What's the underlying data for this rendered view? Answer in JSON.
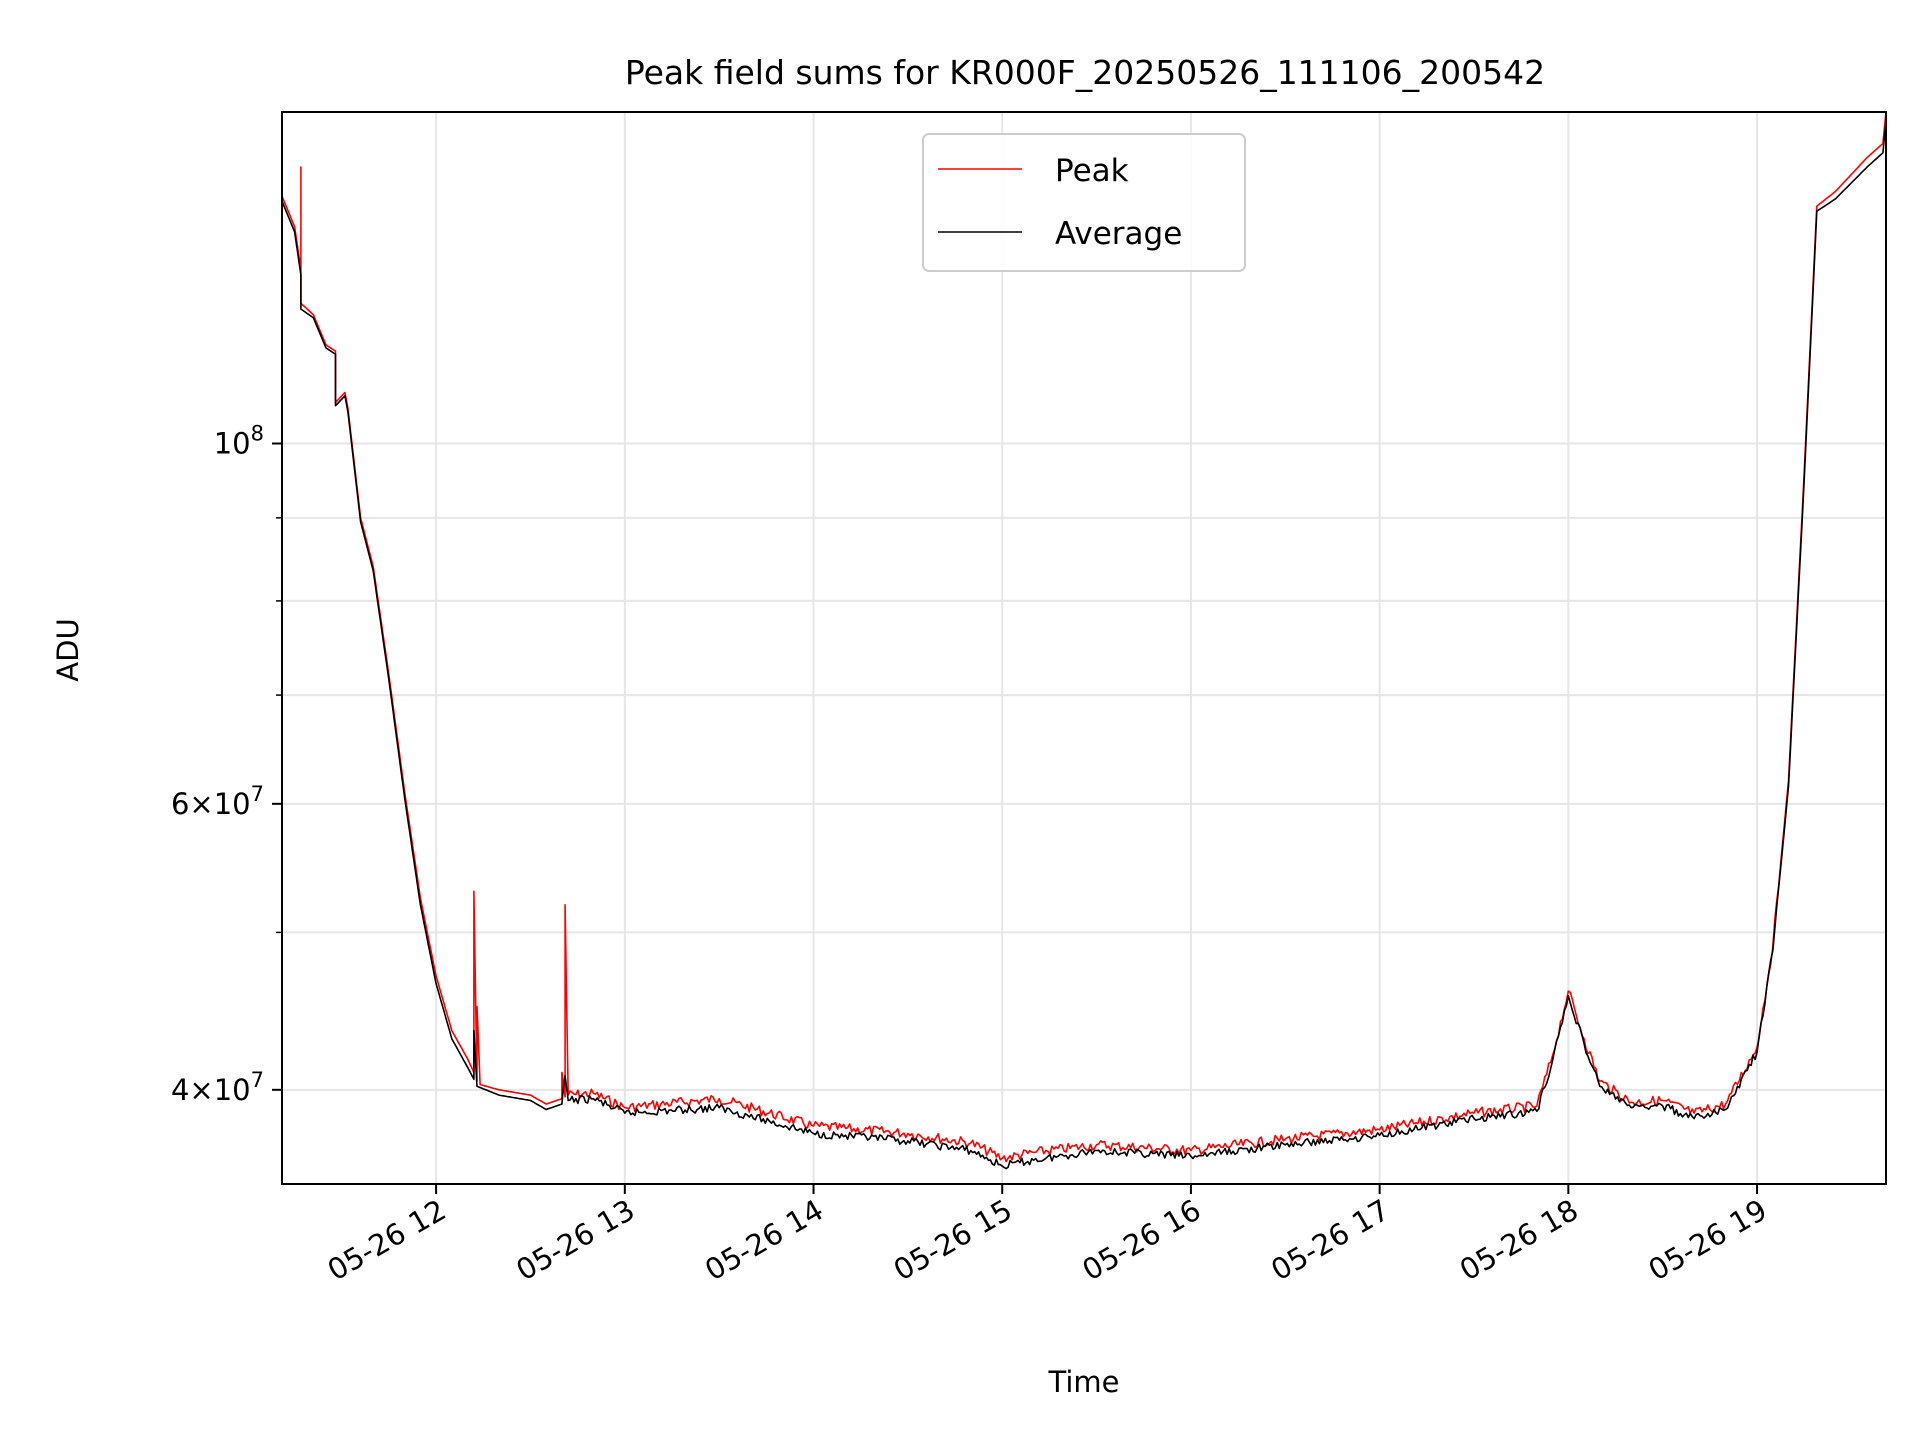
{
  "chart_data": {
    "type": "line",
    "title": "Peak field sums for KR000F_20250526_111106_200542",
    "xlabel": "Time",
    "ylabel": "ADU",
    "y_scale": "log",
    "ylim": [
      35000000,
      160000000
    ],
    "xlim": [
      "2025-05-26 11:11",
      "2025-05-26 19:41"
    ],
    "x_ticks": [
      {
        "x": "2025-05-26 12:00",
        "label": "05-26 12"
      },
      {
        "x": "2025-05-26 13:00",
        "label": "05-26 13"
      },
      {
        "x": "2025-05-26 14:00",
        "label": "05-26 14"
      },
      {
        "x": "2025-05-26 15:00",
        "label": "05-26 15"
      },
      {
        "x": "2025-05-26 16:00",
        "label": "05-26 16"
      },
      {
        "x": "2025-05-26 17:00",
        "label": "05-26 17"
      },
      {
        "x": "2025-05-26 18:00",
        "label": "05-26 18"
      },
      {
        "x": "2025-05-26 19:00",
        "label": "05-26 19"
      }
    ],
    "y_major_ticks": [
      {
        "value": 40000000,
        "base": "4×10",
        "exp": "7"
      },
      {
        "value": 60000000,
        "base": "6×10",
        "exp": "7"
      },
      {
        "value": 100000000,
        "base": "10",
        "exp": "8"
      }
    ],
    "y_minor_ticks": [
      50000000,
      70000000,
      80000000,
      90000000
    ],
    "grid": true,
    "legend_position": "top-center",
    "series": [
      {
        "name": "Peak",
        "color": "#ff0000",
        "points": [
          [
            "2025-05-26 11:11",
            142000000
          ],
          [
            "2025-05-26 11:15",
            136000000
          ],
          [
            "2025-05-26 11:17",
            128000000
          ],
          [
            "2025-05-26 11:17",
            148000000
          ],
          [
            "2025-05-26 11:17",
            122000000
          ],
          [
            "2025-05-26 11:21",
            120000000
          ],
          [
            "2025-05-26 11:25",
            115000000
          ],
          [
            "2025-05-26 11:28",
            114000000
          ],
          [
            "2025-05-26 11:28",
            106000000
          ],
          [
            "2025-05-26 11:31",
            107500000
          ],
          [
            "2025-05-26 11:32",
            105000000
          ],
          [
            "2025-05-26 11:36",
            90000000
          ],
          [
            "2025-05-26 11:40",
            84000000
          ],
          [
            "2025-05-26 11:45",
            72000000
          ],
          [
            "2025-05-26 11:50",
            61000000
          ],
          [
            "2025-05-26 11:55",
            52500000
          ],
          [
            "2025-05-26 12:00",
            47000000
          ],
          [
            "2025-05-26 12:05",
            43500000
          ],
          [
            "2025-05-26 12:10",
            41800000
          ],
          [
            "2025-05-26 12:12",
            41000000
          ],
          [
            "2025-05-26 12:12",
            53000000
          ],
          [
            "2025-05-26 12:13",
            40500000
          ],
          [
            "2025-05-26 12:13",
            45000000
          ],
          [
            "2025-05-26 12:14",
            40300000
          ],
          [
            "2025-05-26 12:20",
            40000000
          ],
          [
            "2025-05-26 12:30",
            39700000
          ],
          [
            "2025-05-26 12:35",
            39200000
          ],
          [
            "2025-05-26 12:40",
            39500000
          ],
          [
            "2025-05-26 12:40",
            41000000
          ],
          [
            "2025-05-26 12:41",
            39600000
          ],
          [
            "2025-05-26 12:41",
            52000000
          ],
          [
            "2025-05-26 12:42",
            39700000
          ],
          [
            "2025-05-26 12:50",
            39800000
          ],
          [
            "2025-05-26 13:00",
            39000000
          ],
          [
            "2025-05-26 13:30",
            39500000
          ],
          [
            "2025-05-26 14:00",
            38000000
          ],
          [
            "2025-05-26 14:30",
            37600000
          ],
          [
            "2025-05-26 14:50",
            37100000
          ],
          [
            "2025-05-26 15:00",
            36300000
          ],
          [
            "2025-05-26 15:10",
            36600000
          ],
          [
            "2025-05-26 15:30",
            37000000
          ],
          [
            "2025-05-26 16:00",
            36700000
          ],
          [
            "2025-05-26 16:30",
            37300000
          ],
          [
            "2025-05-26 17:00",
            37800000
          ],
          [
            "2025-05-26 17:30",
            38700000
          ],
          [
            "2025-05-26 17:50",
            39100000
          ],
          [
            "2025-05-26 17:55",
            42000000
          ],
          [
            "2025-05-26 18:00",
            46000000
          ],
          [
            "2025-05-26 18:05",
            43000000
          ],
          [
            "2025-05-26 18:10",
            40500000
          ],
          [
            "2025-05-26 18:20",
            39300000
          ],
          [
            "2025-05-26 18:30",
            39400000
          ],
          [
            "2025-05-26 18:40",
            38700000
          ],
          [
            "2025-05-26 18:50",
            39200000
          ],
          [
            "2025-05-26 19:00",
            42500000
          ],
          [
            "2025-05-26 19:05",
            49000000
          ],
          [
            "2025-05-26 19:10",
            62000000
          ],
          [
            "2025-05-26 19:15",
            96000000
          ],
          [
            "2025-05-26 19:19",
            140000000
          ],
          [
            "2025-05-26 19:25",
            143000000
          ],
          [
            "2025-05-26 19:35",
            150000000
          ],
          [
            "2025-05-26 19:40",
            153000000
          ],
          [
            "2025-05-26 19:41",
            160000000
          ]
        ]
      },
      {
        "name": "Average",
        "color": "#000000",
        "points": [
          [
            "2025-05-26 11:11",
            141000000
          ],
          [
            "2025-05-26 11:15",
            135000000
          ],
          [
            "2025-05-26 11:17",
            127000000
          ],
          [
            "2025-05-26 11:17",
            121000000
          ],
          [
            "2025-05-26 11:21",
            119500000
          ],
          [
            "2025-05-26 11:25",
            114500000
          ],
          [
            "2025-05-26 11:28",
            113500000
          ],
          [
            "2025-05-26 11:28",
            105500000
          ],
          [
            "2025-05-26 11:31",
            107000000
          ],
          [
            "2025-05-26 11:32",
            104500000
          ],
          [
            "2025-05-26 11:36",
            89500000
          ],
          [
            "2025-05-26 11:40",
            83500000
          ],
          [
            "2025-05-26 11:45",
            71500000
          ],
          [
            "2025-05-26 11:50",
            60500000
          ],
          [
            "2025-05-26 11:55",
            52000000
          ],
          [
            "2025-05-26 12:00",
            46500000
          ],
          [
            "2025-05-26 12:05",
            43000000
          ],
          [
            "2025-05-26 12:10",
            41300000
          ],
          [
            "2025-05-26 12:12",
            40600000
          ],
          [
            "2025-05-26 12:12",
            43500000
          ],
          [
            "2025-05-26 12:13",
            40200000
          ],
          [
            "2025-05-26 12:20",
            39700000
          ],
          [
            "2025-05-26 12:30",
            39400000
          ],
          [
            "2025-05-26 12:35",
            38900000
          ],
          [
            "2025-05-26 12:40",
            39200000
          ],
          [
            "2025-05-26 12:41",
            40800000
          ],
          [
            "2025-05-26 12:42",
            39400000
          ],
          [
            "2025-05-26 12:50",
            39500000
          ],
          [
            "2025-05-26 13:00",
            38700000
          ],
          [
            "2025-05-26 13:30",
            39000000
          ],
          [
            "2025-05-26 14:00",
            37600000
          ],
          [
            "2025-05-26 14:30",
            37200000
          ],
          [
            "2025-05-26 14:50",
            36700000
          ],
          [
            "2025-05-26 15:00",
            35900000
          ],
          [
            "2025-05-26 15:10",
            36200000
          ],
          [
            "2025-05-26 15:30",
            36700000
          ],
          [
            "2025-05-26 16:00",
            36400000
          ],
          [
            "2025-05-26 16:30",
            37000000
          ],
          [
            "2025-05-26 17:00",
            37500000
          ],
          [
            "2025-05-26 17:30",
            38400000
          ],
          [
            "2025-05-26 17:50",
            38800000
          ],
          [
            "2025-05-26 17:55",
            41700000
          ],
          [
            "2025-05-26 18:00",
            45700000
          ],
          [
            "2025-05-26 18:05",
            42700000
          ],
          [
            "2025-05-26 18:10",
            40200000
          ],
          [
            "2025-05-26 18:20",
            39000000
          ],
          [
            "2025-05-26 18:30",
            39100000
          ],
          [
            "2025-05-26 18:40",
            38400000
          ],
          [
            "2025-05-26 18:50",
            38900000
          ],
          [
            "2025-05-26 19:00",
            42200000
          ],
          [
            "2025-05-26 19:05",
            48700000
          ],
          [
            "2025-05-26 19:10",
            61500000
          ],
          [
            "2025-05-26 19:15",
            95000000
          ],
          [
            "2025-05-26 19:19",
            139000000
          ],
          [
            "2025-05-26 19:25",
            141500000
          ],
          [
            "2025-05-26 19:35",
            148000000
          ],
          [
            "2025-05-26 19:40",
            151000000
          ],
          [
            "2025-05-26 19:41",
            158000000
          ]
        ]
      }
    ]
  }
}
